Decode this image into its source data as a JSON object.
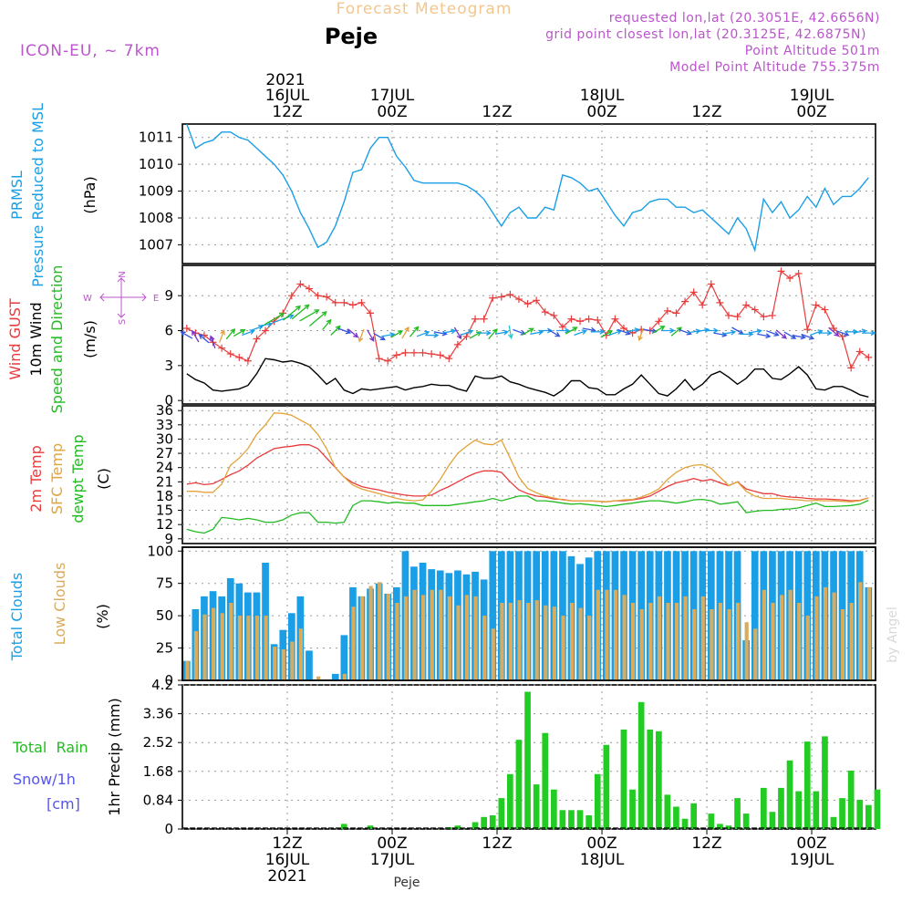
{
  "header": {
    "title": "Forecast Meteogram",
    "location": "Peje",
    "model": "ICON-EU,  ~ 7km",
    "requested": "requested lon,lat (20.3051E, 42.6656N)",
    "gridpoint": "grid point closest lon,lat (20.3125E, 42.6875N)",
    "altitude": "Point Altitude 501m",
    "model_altitude": "Model Point Altitude 755.375m",
    "footer_location": "Peje",
    "watermark": "by Angel"
  },
  "colors": {
    "pressure": "#1a9fe6",
    "gust": "#e83c3c",
    "wind": "#000000",
    "wind_label": "#22bb22",
    "temp2m": "#e83c3c",
    "sfc": "#e3a23a",
    "dewpt": "#22bb22",
    "total_clouds": "#1a9fe6",
    "low_clouds": "#d8ac5e",
    "rain": "#22cc22",
    "snow_label": "#5555ee",
    "compass": "#bb55cc"
  },
  "time_axis": {
    "top_year": "2021",
    "ticks": [
      {
        "t": 12,
        "top": [
          "16JUL",
          "12Z"
        ],
        "bottom": [
          "12Z",
          "16JUL",
          "2021"
        ]
      },
      {
        "t": 24,
        "top": [
          "17JUL",
          "00Z"
        ],
        "bottom": [
          "00Z",
          "17JUL"
        ]
      },
      {
        "t": 36,
        "top": [
          "12Z"
        ],
        "bottom": [
          "12Z"
        ]
      },
      {
        "t": 48,
        "top": [
          "18JUL",
          "00Z"
        ],
        "bottom": [
          "00Z",
          "18JUL"
        ]
      },
      {
        "t": 60,
        "top": [
          "12Z"
        ],
        "bottom": [
          "12Z"
        ]
      },
      {
        "t": 72,
        "top": [
          "19JUL",
          "00Z"
        ],
        "bottom": [
          "00Z",
          "19JUL"
        ]
      }
    ]
  },
  "chart_data": [
    {
      "type": "line",
      "id": "pressure",
      "title": "PRMSL Pressure Reduced to MSL",
      "label_lines": [
        "PRMSL",
        "Pressure Reduced to MSL"
      ],
      "ylabel": "(hPa)",
      "ylim": [
        1006.3,
        1011.5
      ],
      "yticks": [
        1007,
        1008,
        1009,
        1010,
        1011
      ],
      "x_start_hour": 0.5,
      "values": [
        1011.5,
        1010.6,
        1010.8,
        1010.9,
        1011.2,
        1011.2,
        1011.0,
        1010.9,
        1010.6,
        1010.3,
        1010.0,
        1009.6,
        1009.0,
        1008.2,
        1007.6,
        1006.9,
        1007.1,
        1007.7,
        1008.6,
        1009.7,
        1009.8,
        1010.6,
        1011.0,
        1011.0,
        1010.3,
        1009.9,
        1009.4,
        1009.3,
        1009.3,
        1009.3,
        1009.3,
        1009.3,
        1009.2,
        1009.0,
        1008.7,
        1008.2,
        1007.7,
        1008.2,
        1008.4,
        1008.0,
        1008.0,
        1008.4,
        1008.3,
        1009.6,
        1009.5,
        1009.3,
        1009.0,
        1009.1,
        1008.6,
        1008.1,
        1007.7,
        1008.2,
        1008.3,
        1008.6,
        1008.7,
        1008.7,
        1008.4,
        1008.4,
        1008.2,
        1008.3,
        1008.0,
        1007.7,
        1007.4,
        1008.0,
        1007.6,
        1006.8,
        1008.7,
        1008.2,
        1008.6,
        1008.0,
        1008.3,
        1008.8,
        1008.4,
        1009.1,
        1008.5,
        1008.8,
        1008.8,
        1009.1,
        1009.5
      ]
    },
    {
      "type": "line",
      "id": "wind",
      "title": "Wind GUST / 10m Wind Speed and Direction",
      "label_lines": [
        "Wind GUST",
        "10m Wind",
        "Speed and Direction"
      ],
      "ylabel": "(m/s)",
      "ylim": [
        -0.3,
        11.6
      ],
      "yticks": [
        0,
        3,
        6,
        9
      ],
      "compass": {
        "n": "N",
        "s": "S",
        "w": "W",
        "e": "E"
      },
      "series": [
        {
          "name": "Wind GUST",
          "x_start_hour": 0.5,
          "values": [
            6.2,
            5.8,
            5.6,
            5.0,
            4.5,
            4.0,
            3.7,
            3.4,
            5.3,
            6.0,
            6.8,
            7.5,
            9.0,
            10.0,
            9.6,
            9.0,
            8.9,
            8.4,
            8.4,
            8.2,
            8.4,
            7.5,
            3.6,
            3.4,
            3.9,
            4.1,
            4.1,
            4.1,
            4.0,
            3.9,
            3.6,
            4.8,
            5.5,
            7.0,
            7.0,
            8.8,
            8.9,
            9.1,
            8.7,
            8.3,
            8.6,
            7.6,
            7.3,
            6.3,
            7.0,
            6.8,
            7.0,
            6.9,
            5.6,
            7.0,
            6.2,
            5.8,
            6.1,
            6.0,
            6.8,
            7.7,
            7.5,
            8.5,
            9.3,
            8.2,
            10.0,
            8.4,
            7.3,
            7.2,
            8.2,
            7.8,
            7.2,
            7.3,
            11.1,
            10.5,
            10.9,
            6.1,
            8.2,
            7.8,
            6.2,
            5.5,
            2.8,
            4.2,
            3.7
          ]
        },
        {
          "name": "10m Wind",
          "x_start_hour": 0.5,
          "values": [
            2.3,
            1.8,
            1.5,
            0.9,
            0.8,
            0.9,
            1.0,
            1.3,
            2.3,
            3.6,
            3.5,
            3.3,
            3.4,
            3.2,
            2.9,
            2.2,
            1.4,
            1.9,
            0.9,
            0.6,
            1.0,
            0.9,
            1.0,
            1.1,
            1.2,
            0.9,
            1.1,
            1.2,
            1.4,
            1.3,
            1.3,
            1.0,
            0.8,
            2.1,
            1.9,
            1.9,
            2.1,
            1.6,
            1.4,
            1.1,
            0.9,
            0.7,
            0.4,
            0.9,
            1.7,
            1.7,
            1.1,
            1.0,
            0.5,
            0.5,
            1.0,
            1.4,
            2.2,
            1.4,
            0.6,
            0.4,
            1.0,
            1.8,
            0.9,
            1.4,
            2.2,
            2.5,
            2.0,
            1.4,
            1.9,
            2.7,
            2.7,
            1.9,
            1.8,
            2.3,
            2.9,
            2.2,
            1.0,
            0.9,
            1.2,
            1.2,
            0.9,
            0.5,
            0.3
          ]
        }
      ],
      "arrows": {
        "x_start_hour": 0.5,
        "speeds": [
          5.6,
          5.5,
          5.3,
          5.0,
          5.5,
          5.7,
          5.8,
          5.8,
          6.2,
          6.5,
          7.0,
          7.0,
          7.5,
          7.6,
          7.3,
          7.0,
          6.5,
          6.0,
          6.0,
          5.8,
          5.6,
          5.6,
          5.5,
          5.6,
          5.7,
          5.8,
          5.9,
          5.7,
          5.6,
          5.8,
          5.9,
          5.8,
          5.8,
          5.6,
          5.8,
          5.7,
          5.8,
          5.9,
          5.9,
          5.9,
          5.8,
          6.0,
          5.8,
          6.0,
          6.0,
          5.8,
          6.1,
          5.9,
          5.7,
          5.8,
          5.9,
          6.0,
          5.7,
          6.0,
          6.1,
          6.0,
          5.9,
          5.9,
          5.9,
          6.0,
          6.0,
          5.7,
          5.8,
          6.0,
          5.7,
          5.9,
          5.6,
          5.8,
          5.7,
          5.6,
          5.5,
          5.5,
          5.8,
          5.8,
          5.9,
          5.8,
          5.9,
          5.9,
          5.8
        ],
        "directions_deg": [
          300,
          330,
          310,
          340,
          20,
          40,
          60,
          70,
          70,
          80,
          60,
          70,
          50,
          50,
          60,
          50,
          40,
          45,
          110,
          130,
          200,
          150,
          120,
          80,
          60,
          30,
          40,
          70,
          90,
          100,
          80,
          150,
          70,
          60,
          90,
          40,
          80,
          170,
          110,
          60,
          80,
          90,
          120,
          90,
          60,
          70,
          100,
          90,
          60,
          70,
          110,
          80,
          200,
          100,
          60,
          90,
          50,
          110,
          80,
          80,
          90,
          100,
          80,
          120,
          90,
          80,
          100,
          110,
          130,
          120,
          100,
          110,
          70,
          90,
          130,
          110,
          90,
          80,
          90
        ]
      }
    },
    {
      "type": "line",
      "id": "temperature",
      "title": "2m Temp / SFC Temp / dewpt Temp",
      "label_lines": [
        "2m Temp",
        "SFC Temp",
        "dewpt Temp"
      ],
      "ylabel": "(C)",
      "ylim": [
        8,
        37
      ],
      "yticks": [
        9,
        12,
        15,
        18,
        21,
        24,
        27,
        30,
        33,
        36
      ],
      "series": [
        {
          "name": "2m Temp",
          "x_start_hour": 0.5,
          "values": [
            20.5,
            20.8,
            20.4,
            20.6,
            21.5,
            22.5,
            23.3,
            24.5,
            26.0,
            27.0,
            28.0,
            28.3,
            28.5,
            28.8,
            28.8,
            28.0,
            26.0,
            24.0,
            22.0,
            20.8,
            20.0,
            19.6,
            19.3,
            18.8,
            18.5,
            18.2,
            18.0,
            18.0,
            18.2,
            19.2,
            20.0,
            21.0,
            22.0,
            22.8,
            23.3,
            23.3,
            23.0,
            21.0,
            19.3,
            18.5,
            18.0,
            17.8,
            17.4,
            17.3,
            17.0,
            17.0,
            17.0,
            16.9,
            16.8,
            17.0,
            17.0,
            17.2,
            17.5,
            18.0,
            19.0,
            20.0,
            20.8,
            21.2,
            21.7,
            21.2,
            21.5,
            20.8,
            20.2,
            21.0,
            19.5,
            19.0,
            18.5,
            18.5,
            18.0,
            17.8,
            17.7,
            17.5,
            17.4,
            17.4,
            17.3,
            17.2,
            17.0,
            17.1,
            17.6
          ]
        },
        {
          "name": "SFC Temp",
          "x_start_hour": 0.5,
          "values": [
            19.0,
            19.0,
            18.8,
            18.8,
            20.5,
            24.5,
            26.0,
            28.0,
            31.0,
            33.0,
            35.5,
            35.4,
            35.0,
            34.0,
            33.0,
            31.0,
            28.0,
            24.0,
            22.0,
            20.3,
            19.5,
            19.0,
            18.5,
            18.0,
            17.5,
            17.2,
            17.0,
            17.2,
            19.0,
            21.5,
            24.5,
            27.0,
            28.5,
            29.8,
            29.0,
            28.8,
            29.8,
            26.0,
            22.0,
            19.6,
            18.7,
            18.0,
            17.6,
            17.2,
            17.0,
            17.0,
            17.0,
            16.9,
            16.8,
            17.0,
            17.2,
            17.3,
            17.8,
            18.5,
            19.5,
            21.5,
            23.0,
            24.0,
            24.5,
            24.6,
            23.8,
            22.0,
            20.2,
            21.0,
            19.0,
            18.0,
            17.5,
            17.5,
            17.5,
            17.3,
            17.2,
            17.0,
            17.1,
            17.0,
            17.0,
            16.9,
            16.8,
            17.0,
            17.6
          ]
        },
        {
          "name": "dewpt Temp",
          "x_start_hour": 0.5,
          "values": [
            11.0,
            10.5,
            10.2,
            11.0,
            13.5,
            13.3,
            13.0,
            13.3,
            13.0,
            12.5,
            12.5,
            13.0,
            14.0,
            14.5,
            14.5,
            12.5,
            12.5,
            12.3,
            12.5,
            16.0,
            17.0,
            17.0,
            16.8,
            16.5,
            16.7,
            16.5,
            16.5,
            16.0,
            16.0,
            16.0,
            16.0,
            16.3,
            16.5,
            16.8,
            17.0,
            17.5,
            17.0,
            17.5,
            18.0,
            18.0,
            17.0,
            17.0,
            16.8,
            16.5,
            16.3,
            16.4,
            16.2,
            16.0,
            15.8,
            16.0,
            16.3,
            16.5,
            16.8,
            17.0,
            17.0,
            16.8,
            16.5,
            16.8,
            17.2,
            17.3,
            17.0,
            16.3,
            16.5,
            16.8,
            14.5,
            14.8,
            15.0,
            15.0,
            15.2,
            15.3,
            15.5,
            16.0,
            16.5,
            15.8,
            15.8,
            15.9,
            16.0,
            16.3,
            17.1
          ]
        }
      ]
    },
    {
      "type": "bar",
      "id": "clouds",
      "title": "Total Clouds / Low Clouds",
      "label_lines": [
        "Total Clouds",
        "Low Clouds"
      ],
      "ylabel": "(%)",
      "ylim": [
        0,
        103
      ],
      "yticks": [
        0,
        25,
        50,
        75,
        100
      ],
      "x_start_hour": 0,
      "series": [
        {
          "name": "Total Clouds",
          "values": [
            15,
            55,
            65,
            69,
            65,
            79,
            75,
            68,
            68,
            91,
            28,
            39,
            52,
            65,
            23,
            0,
            0,
            5,
            35,
            72,
            65,
            71,
            75,
            67,
            72,
            100,
            88,
            91,
            86,
            85,
            83,
            85,
            82,
            84,
            78,
            100,
            100,
            100,
            100,
            100,
            100,
            100,
            100,
            100,
            96,
            90,
            95,
            100,
            100,
            100,
            100,
            100,
            100,
            100,
            100,
            100,
            100,
            100,
            100,
            100,
            100,
            100,
            100,
            100,
            31,
            100,
            100,
            100,
            100,
            100,
            100,
            100,
            100,
            100,
            100,
            100,
            100,
            100,
            72
          ]
        },
        {
          "name": "Low Clouds",
          "values": [
            15,
            38,
            51,
            56,
            52,
            60,
            50,
            50,
            50,
            50,
            26,
            24,
            30,
            40,
            0,
            3,
            0,
            0,
            5,
            57,
            65,
            73,
            76,
            67,
            60,
            65,
            70,
            66,
            70,
            70,
            65,
            58,
            66,
            65,
            50,
            40,
            60,
            60,
            62,
            60,
            62,
            58,
            57,
            50,
            60,
            56,
            50,
            70,
            70,
            70,
            66,
            60,
            55,
            60,
            65,
            60,
            60,
            65,
            55,
            65,
            55,
            60,
            55,
            60,
            45,
            40,
            70,
            60,
            66,
            70,
            60,
            50,
            65,
            72,
            68,
            55,
            60,
            76,
            72
          ]
        }
      ]
    },
    {
      "type": "bar",
      "id": "precip",
      "title": "1hr Precip (mm)",
      "label_lines": [
        "Total  Rain",
        "Snow/1h",
        "[cm]"
      ],
      "ylabel": "1hr Precip (mm)",
      "ylim": [
        0,
        4.2
      ],
      "yticks": [
        0,
        0.84,
        1.68,
        2.52,
        3.36,
        4.2
      ],
      "ytick_labels": [
        "0",
        "0.84",
        "1.68",
        "2.52",
        "3.36",
        "4.2"
      ],
      "x_start_hour": 0,
      "series": [
        {
          "name": "Total Rain",
          "values": [
            0,
            0,
            0,
            0,
            0,
            0,
            0,
            0,
            0,
            0,
            0,
            0,
            0,
            0,
            0,
            0,
            0,
            0,
            0.15,
            0,
            0,
            0.1,
            0,
            0,
            0,
            0,
            0,
            0,
            0,
            0,
            0.05,
            0.1,
            0,
            0.2,
            0.35,
            0.4,
            0.9,
            1.6,
            2.6,
            4.0,
            1.3,
            2.8,
            1.15,
            0.55,
            0.55,
            0.55,
            0.4,
            1.6,
            2.45,
            0,
            2.9,
            1.15,
            3.7,
            2.9,
            2.85,
            1.0,
            0.65,
            0.3,
            0.75,
            0,
            0.45,
            0.15,
            0.1,
            0.9,
            0.45,
            0,
            1.2,
            0.5,
            1.2,
            2.0,
            1.1,
            2.55,
            1.1,
            2.7,
            0.35,
            0.9,
            1.7,
            0.85,
            0.7,
            1.15
          ]
        }
      ]
    }
  ]
}
